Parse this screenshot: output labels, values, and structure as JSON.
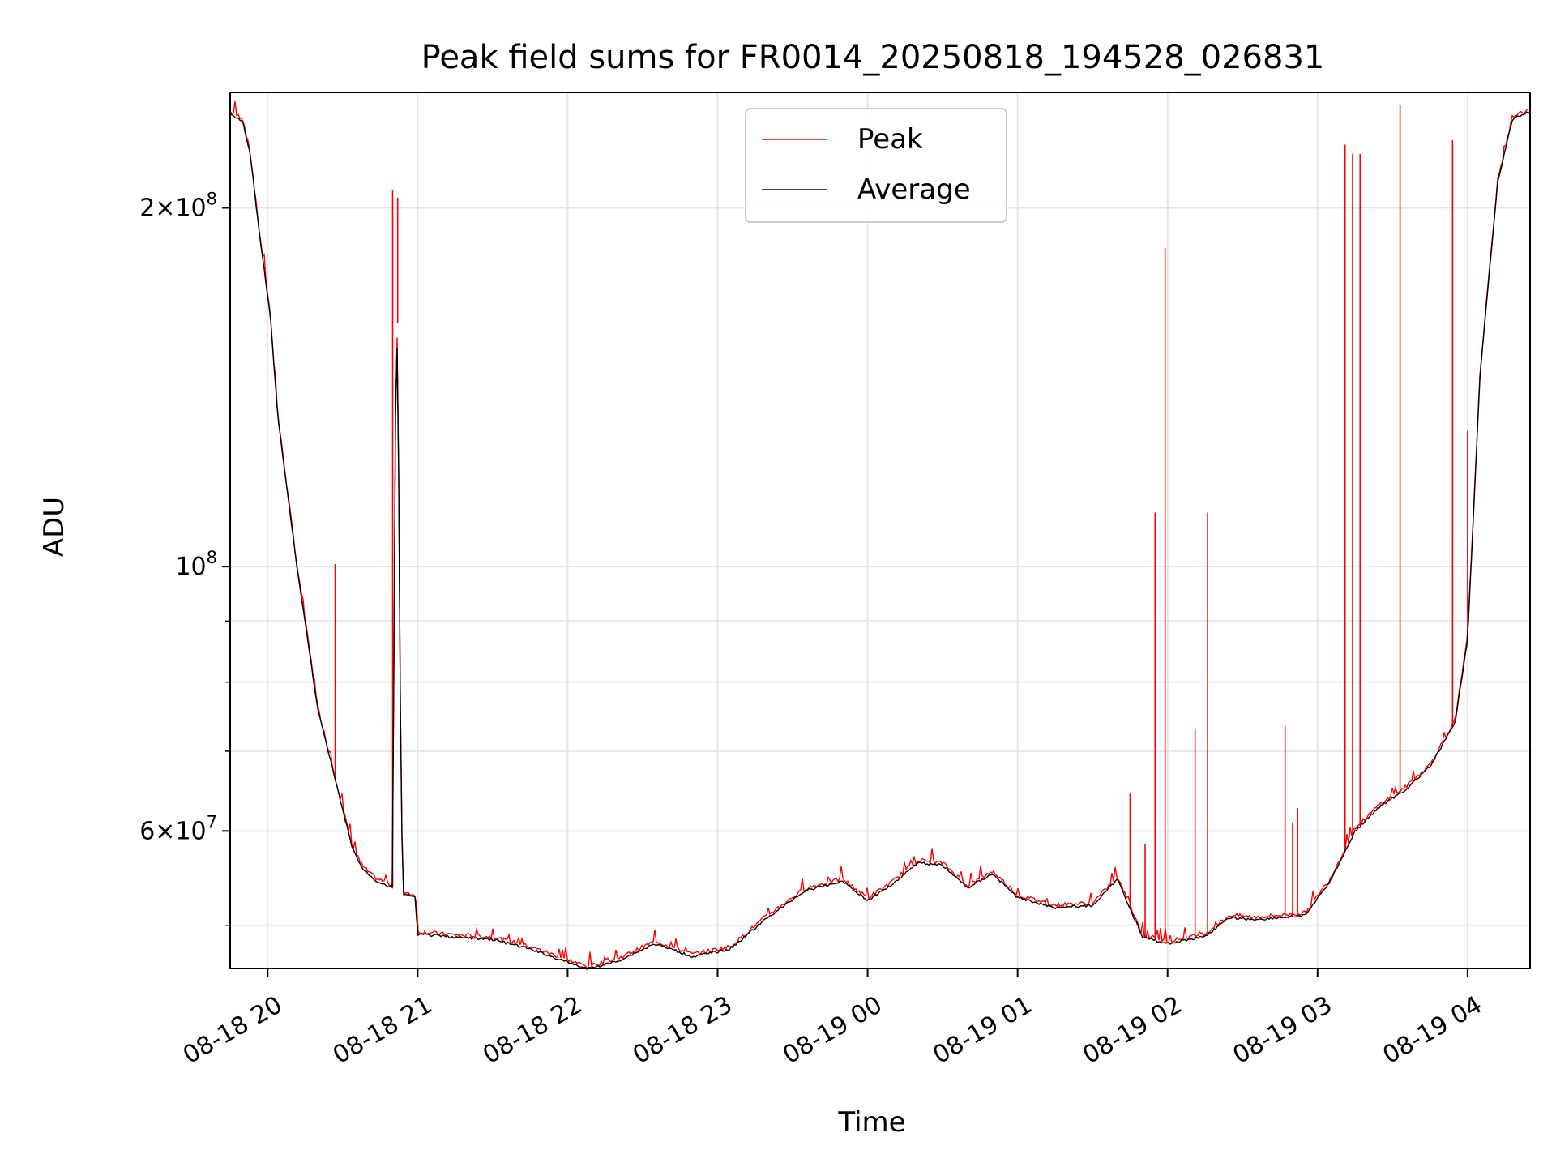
{
  "chart_data": {
    "type": "line",
    "title": "Peak field sums for FR0014_20250818_194528_026831",
    "xlabel": "Time",
    "ylabel": "ADU",
    "yscale": "log",
    "ylim": [
      46000000,
      250000000
    ],
    "xlim": [
      "2025-08-18 19:45",
      "2025-08-19 04:25"
    ],
    "x_ticks": [
      {
        "t": "2025-08-18 20:00",
        "label": "08-18 20"
      },
      {
        "t": "2025-08-18 21:00",
        "label": "08-18 21"
      },
      {
        "t": "2025-08-18 22:00",
        "label": "08-18 22"
      },
      {
        "t": "2025-08-18 23:00",
        "label": "08-18 23"
      },
      {
        "t": "2025-08-19 00:00",
        "label": "08-19 00"
      },
      {
        "t": "2025-08-19 01:00",
        "label": "08-19 01"
      },
      {
        "t": "2025-08-19 02:00",
        "label": "08-19 02"
      },
      {
        "t": "2025-08-19 03:00",
        "label": "08-19 03"
      },
      {
        "t": "2025-08-19 04:00",
        "label": "08-19 04"
      }
    ],
    "y_major_ticks": [
      {
        "value": 60000000,
        "mant": "6",
        "exp": "7"
      },
      {
        "value": 100000000,
        "mant": "",
        "exp": "8"
      },
      {
        "value": 200000000,
        "mant": "2",
        "exp": "8"
      }
    ],
    "y_minor_ticks": [
      50000000,
      70000000,
      80000000,
      90000000
    ],
    "grid": true,
    "legend": {
      "position": "top-center",
      "entries": [
        {
          "label": "Peak",
          "color": "#ff0000"
        },
        {
          "label": "Average",
          "color": "#000000"
        }
      ]
    },
    "series": [
      {
        "name": "Average",
        "color": "#000000",
        "points": [
          [
            "2025-08-18 19:45",
            240000000
          ],
          [
            "2025-08-18 19:50",
            237000000
          ],
          [
            "2025-08-18 19:53",
            222000000
          ],
          [
            "2025-08-18 19:57",
            188000000
          ],
          [
            "2025-08-18 20:01",
            163000000
          ],
          [
            "2025-08-18 20:04",
            134000000
          ],
          [
            "2025-08-18 20:08",
            115000000
          ],
          [
            "2025-08-18 20:12",
            99000000
          ],
          [
            "2025-08-18 20:16",
            87000000
          ],
          [
            "2025-08-18 20:20",
            76000000
          ],
          [
            "2025-08-18 20:25",
            69000000
          ],
          [
            "2025-08-18 20:30",
            62500000
          ],
          [
            "2025-08-18 20:34",
            58000000
          ],
          [
            "2025-08-18 20:38",
            55800000
          ],
          [
            "2025-08-18 20:43",
            54600000
          ],
          [
            "2025-08-18 20:50",
            53800000
          ],
          [
            "2025-08-18 20:51",
            130000000
          ],
          [
            "2025-08-18 20:52",
            160000000
          ],
          [
            "2025-08-18 20:53",
            79000000
          ],
          [
            "2025-08-18 20:54",
            53200000
          ],
          [
            "2025-08-18 20:59",
            52800000
          ],
          [
            "2025-08-18 21:00",
            49200000
          ],
          [
            "2025-08-18 21:15",
            48900000
          ],
          [
            "2025-08-18 21:30",
            48700000
          ],
          [
            "2025-08-18 21:45",
            47800000
          ],
          [
            "2025-08-18 22:00",
            46600000
          ],
          [
            "2025-08-18 22:08",
            46000000
          ],
          [
            "2025-08-18 22:20",
            46700000
          ],
          [
            "2025-08-18 22:35",
            48300000
          ],
          [
            "2025-08-18 22:50",
            47100000
          ],
          [
            "2025-08-18 23:05",
            47800000
          ],
          [
            "2025-08-18 23:20",
            50800000
          ],
          [
            "2025-08-18 23:35",
            53500000
          ],
          [
            "2025-08-18 23:50",
            54500000
          ],
          [
            "2025-08-19 00:00",
            52500000
          ],
          [
            "2025-08-19 00:10",
            54200000
          ],
          [
            "2025-08-19 00:20",
            56500000
          ],
          [
            "2025-08-19 00:30",
            56200000
          ],
          [
            "2025-08-19 00:40",
            53800000
          ],
          [
            "2025-08-19 00:50",
            55300000
          ],
          [
            "2025-08-19 01:00",
            52800000
          ],
          [
            "2025-08-19 01:15",
            51800000
          ],
          [
            "2025-08-19 01:30",
            52000000
          ],
          [
            "2025-08-19 01:40",
            54700000
          ],
          [
            "2025-08-19 01:50",
            48900000
          ],
          [
            "2025-08-19 02:00",
            48300000
          ],
          [
            "2025-08-19 02:15",
            49000000
          ],
          [
            "2025-08-19 02:25",
            50800000
          ],
          [
            "2025-08-19 02:35",
            50600000
          ],
          [
            "2025-08-19 02:55",
            51000000
          ],
          [
            "2025-08-19 03:05",
            54500000
          ],
          [
            "2025-08-19 03:15",
            60000000
          ],
          [
            "2025-08-19 03:25",
            63000000
          ],
          [
            "2025-08-19 03:35",
            65000000
          ],
          [
            "2025-08-19 03:45",
            68000000
          ],
          [
            "2025-08-19 03:55",
            74000000
          ],
          [
            "2025-08-19 04:00",
            87000000
          ],
          [
            "2025-08-19 04:05",
            145000000
          ],
          [
            "2025-08-19 04:12",
            210000000
          ],
          [
            "2025-08-19 04:18",
            238000000
          ],
          [
            "2025-08-19 04:25",
            241000000
          ]
        ]
      },
      {
        "name": "Peak",
        "color": "#ff0000",
        "spikes": [
          [
            "2025-08-18 20:27",
            100500000
          ],
          [
            "2025-08-18 20:50",
            207000000
          ],
          [
            "2025-08-18 20:52",
            204000000
          ],
          [
            "2025-08-19 01:45",
            64500000
          ],
          [
            "2025-08-19 01:51",
            58500000
          ],
          [
            "2025-08-19 01:55",
            111000000
          ],
          [
            "2025-08-19 01:59",
            185000000
          ],
          [
            "2025-08-19 02:11",
            73000000
          ],
          [
            "2025-08-19 02:16",
            111000000
          ],
          [
            "2025-08-19 02:47",
            73500000
          ],
          [
            "2025-08-19 02:50",
            61000000
          ],
          [
            "2025-08-19 02:52",
            62700000
          ],
          [
            "2025-08-19 03:11",
            226000000
          ],
          [
            "2025-08-19 03:14",
            222000000
          ],
          [
            "2025-08-19 03:17",
            222000000
          ],
          [
            "2025-08-19 03:33",
            244000000
          ],
          [
            "2025-08-19 03:54",
            228000000
          ],
          [
            "2025-08-19 04:00",
            130000000
          ]
        ]
      }
    ]
  }
}
